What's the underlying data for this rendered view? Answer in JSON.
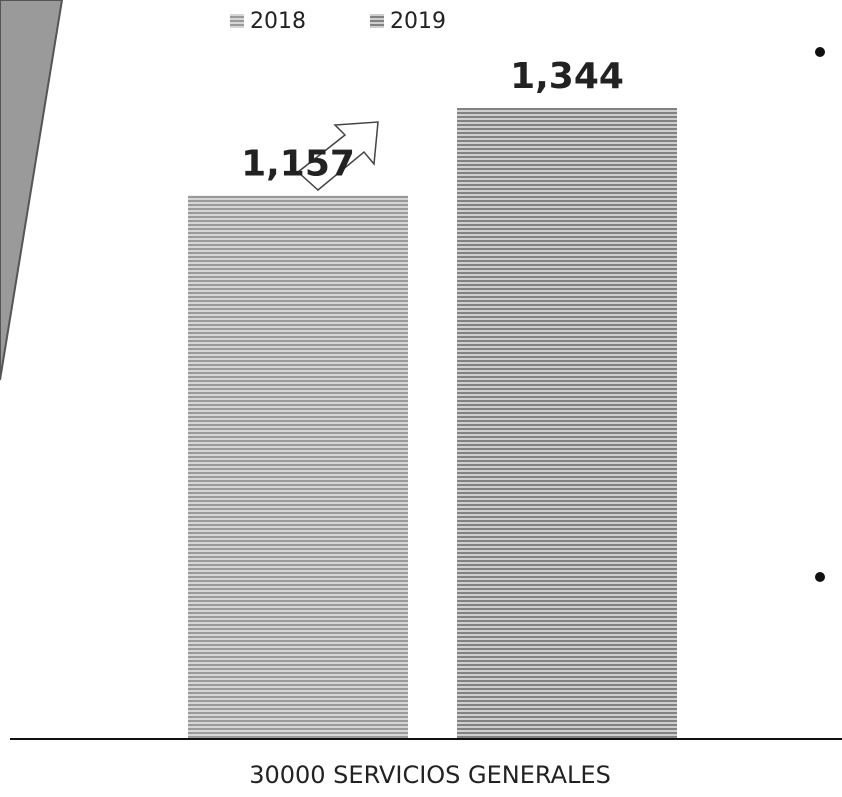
{
  "chart_data": {
    "type": "bar",
    "categories": [
      "30000 SERVICIOS GENERALES"
    ],
    "series": [
      {
        "name": "2018",
        "color": "#8a8a8a",
        "values": [
          1157
        ],
        "value_labels": [
          "1,157"
        ]
      },
      {
        "name": "2019",
        "color": "#7a7a7a",
        "values": [
          1344
        ],
        "value_labels": [
          "1,344"
        ]
      }
    ]
  }
}
